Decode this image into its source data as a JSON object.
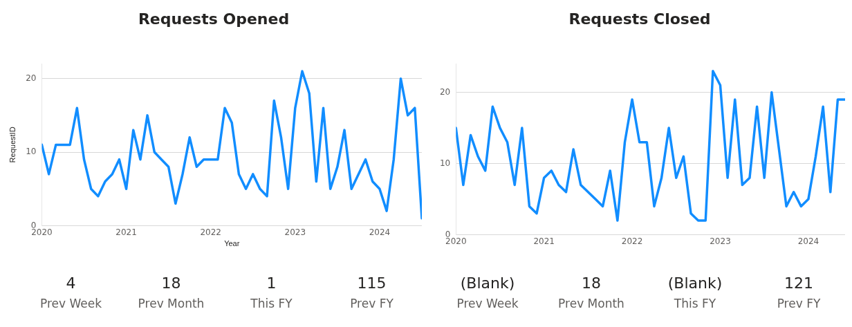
{
  "chart_data": [
    {
      "type": "line",
      "title": "Requests Opened",
      "xlabel": "Year",
      "ylabel": "RequestID",
      "x": [
        "2020-01",
        "2020-02",
        "2020-03",
        "2020-04",
        "2020-05",
        "2020-06",
        "2020-07",
        "2020-08",
        "2020-09",
        "2020-10",
        "2020-11",
        "2020-12",
        "2021-01",
        "2021-02",
        "2021-03",
        "2021-04",
        "2021-05",
        "2021-06",
        "2021-07",
        "2021-08",
        "2021-09",
        "2021-10",
        "2021-11",
        "2021-12",
        "2022-01",
        "2022-02",
        "2022-03",
        "2022-04",
        "2022-05",
        "2022-06",
        "2022-07",
        "2022-08",
        "2022-09",
        "2022-10",
        "2022-11",
        "2022-12",
        "2023-01",
        "2023-02",
        "2023-03",
        "2023-04",
        "2023-05",
        "2023-06",
        "2023-07",
        "2023-08",
        "2023-09",
        "2023-10",
        "2023-11",
        "2023-12",
        "2024-01",
        "2024-02",
        "2024-03",
        "2024-04",
        "2024-05",
        "2024-06",
        "2024-07"
      ],
      "series": [
        {
          "color": "#118dff",
          "values": [
            11,
            7,
            11,
            11,
            11,
            16,
            9,
            5,
            4,
            6,
            7,
            9,
            5,
            13,
            9,
            15,
            10,
            9,
            8,
            3,
            7,
            12,
            8,
            9,
            9,
            9,
            16,
            14,
            7,
            5,
            7,
            5,
            4,
            17,
            12,
            5,
            16,
            21,
            18,
            6,
            16,
            5,
            8,
            13,
            5,
            7,
            9,
            6,
            5,
            2,
            9,
            20,
            15,
            16,
            1
          ]
        }
      ],
      "xlim": [
        "2020-01",
        "2024-07"
      ],
      "xticks": [
        "2020",
        "2021",
        "2022",
        "2023",
        "2024"
      ],
      "ylim": [
        0,
        22
      ],
      "yticks": [
        0,
        10,
        20
      ],
      "grid": "y",
      "marker": "none",
      "line_style": "solid",
      "legend": false
    },
    {
      "type": "line",
      "title": "Requests Closed",
      "x": [
        "2020-01",
        "2020-02",
        "2020-03",
        "2020-04",
        "2020-05",
        "2020-06",
        "2020-07",
        "2020-08",
        "2020-09",
        "2020-10",
        "2020-11",
        "2020-12",
        "2021-01",
        "2021-02",
        "2021-03",
        "2021-04",
        "2021-05",
        "2021-06",
        "2021-07",
        "2021-08",
        "2021-09",
        "2021-10",
        "2021-11",
        "2021-12",
        "2022-01",
        "2022-02",
        "2022-03",
        "2022-04",
        "2022-05",
        "2022-06",
        "2022-07",
        "2022-08",
        "2022-09",
        "2022-10",
        "2022-11",
        "2022-12",
        "2023-01",
        "2023-02",
        "2023-03",
        "2023-04",
        "2023-05",
        "2023-06",
        "2023-07",
        "2023-08",
        "2023-09",
        "2023-10",
        "2023-11",
        "2023-12",
        "2024-01",
        "2024-02",
        "2024-03",
        "2024-04",
        "2024-05",
        "2024-06"
      ],
      "series": [
        {
          "color": "#118dff",
          "values": [
            15,
            7,
            14,
            11,
            9,
            18,
            15,
            13,
            7,
            15,
            4,
            3,
            8,
            9,
            7,
            6,
            12,
            7,
            6,
            5,
            4,
            9,
            2,
            13,
            19,
            13,
            13,
            4,
            8,
            15,
            8,
            11,
            3,
            2,
            2,
            23,
            21,
            8,
            19,
            7,
            8,
            18,
            8,
            20,
            12,
            4,
            6,
            4,
            5,
            11,
            18,
            6,
            19,
            19
          ]
        }
      ],
      "xlim": [
        "2020-01",
        "2024-06"
      ],
      "xticks": [
        "2020",
        "2021",
        "2022",
        "2023",
        "2024"
      ],
      "ylim": [
        0,
        24
      ],
      "yticks": [
        0,
        10,
        20
      ],
      "grid": "y",
      "marker": "none",
      "line_style": "solid",
      "legend": false
    },
    {
      "type": "other",
      "annotations": [
        "4",
        "Prev Week",
        "18",
        "Prev Month",
        "1",
        "This FY",
        "115",
        "Prev FY"
      ]
    },
    {
      "type": "other",
      "annotations": [
        "(Blank)",
        "Prev Week",
        "18",
        "Prev Month",
        "(Blank)",
        "This FY",
        "121",
        "Prev FY"
      ]
    }
  ]
}
